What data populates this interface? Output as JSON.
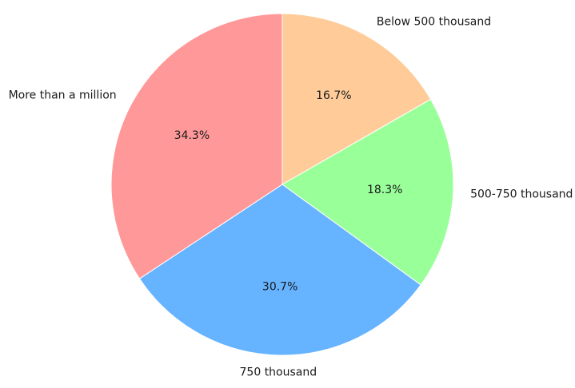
{
  "chart_data": {
    "type": "pie",
    "title": "",
    "start_angle_deg": 90,
    "direction": "clockwise",
    "slices": [
      {
        "label": "Below 500 thousand",
        "value": 16.7,
        "value_label": "16.7%",
        "color": "#ffcc99"
      },
      {
        "label": "500-750 thousand",
        "value": 18.3,
        "value_label": "18.3%",
        "color": "#99ff99"
      },
      {
        "label": "750 thousand",
        "value": 30.7,
        "value_label": "30.7%",
        "color": "#66b3ff"
      },
      {
        "label": "More than a million",
        "value": 34.3,
        "value_label": "34.3%",
        "color": "#ff9999"
      }
    ]
  }
}
